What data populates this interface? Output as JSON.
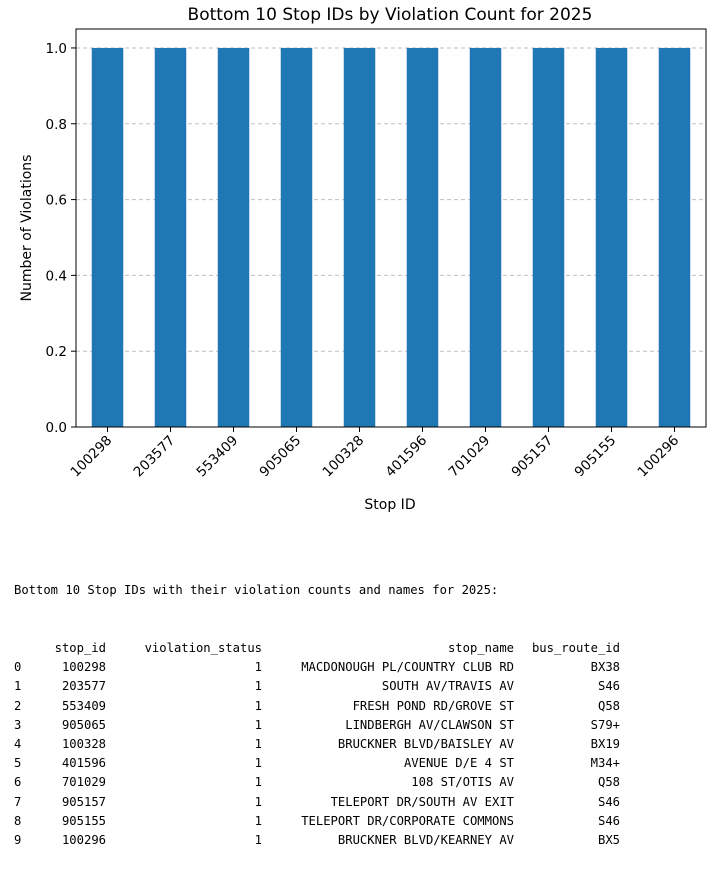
{
  "chart_data": {
    "type": "bar",
    "title": "Bottom 10 Stop IDs by Violation Count for 2025",
    "xlabel": "Stop ID",
    "ylabel": "Number of Violations",
    "categories": [
      "100298",
      "203577",
      "553409",
      "905065",
      "100328",
      "401596",
      "701029",
      "905157",
      "905155",
      "100296"
    ],
    "values": [
      1,
      1,
      1,
      1,
      1,
      1,
      1,
      1,
      1,
      1
    ],
    "ylim": [
      0,
      1.05
    ],
    "yticks": [
      "0.0",
      "0.2",
      "0.4",
      "0.6",
      "0.8",
      "1.0"
    ],
    "grid": "y-dashed",
    "bar_color": "#1f77b4"
  },
  "output": {
    "heading": "Bottom 10 Stop IDs with their violation counts and names for 2025:",
    "columns": [
      "stop_id",
      "violation_status",
      "stop_name",
      "bus_route_id"
    ],
    "rows": [
      {
        "idx": "0",
        "stop_id": "100298",
        "violation_status": "1",
        "stop_name": "MACDONOUGH PL/COUNTRY CLUB RD",
        "bus_route_id": "BX38"
      },
      {
        "idx": "1",
        "stop_id": "203577",
        "violation_status": "1",
        "stop_name": "SOUTH AV/TRAVIS AV",
        "bus_route_id": "S46"
      },
      {
        "idx": "2",
        "stop_id": "553409",
        "violation_status": "1",
        "stop_name": "FRESH POND RD/GROVE ST",
        "bus_route_id": "Q58"
      },
      {
        "idx": "3",
        "stop_id": "905065",
        "violation_status": "1",
        "stop_name": "LINDBERGH AV/CLAWSON ST",
        "bus_route_id": "S79+"
      },
      {
        "idx": "4",
        "stop_id": "100328",
        "violation_status": "1",
        "stop_name": "BRUCKNER BLVD/BAISLEY AV",
        "bus_route_id": "BX19"
      },
      {
        "idx": "5",
        "stop_id": "401596",
        "violation_status": "1",
        "stop_name": "AVENUE D/E 4 ST",
        "bus_route_id": "M34+"
      },
      {
        "idx": "6",
        "stop_id": "701029",
        "violation_status": "1",
        "stop_name": "108 ST/OTIS AV",
        "bus_route_id": "Q58"
      },
      {
        "idx": "7",
        "stop_id": "905157",
        "violation_status": "1",
        "stop_name": "TELEPORT DR/SOUTH AV EXIT",
        "bus_route_id": "S46"
      },
      {
        "idx": "8",
        "stop_id": "905155",
        "violation_status": "1",
        "stop_name": "TELEPORT DR/CORPORATE COMMONS",
        "bus_route_id": "S46"
      },
      {
        "idx": "9",
        "stop_id": "100296",
        "violation_status": "1",
        "stop_name": "BRUCKNER BLVD/KEARNEY AV",
        "bus_route_id": "BX5"
      }
    ]
  }
}
